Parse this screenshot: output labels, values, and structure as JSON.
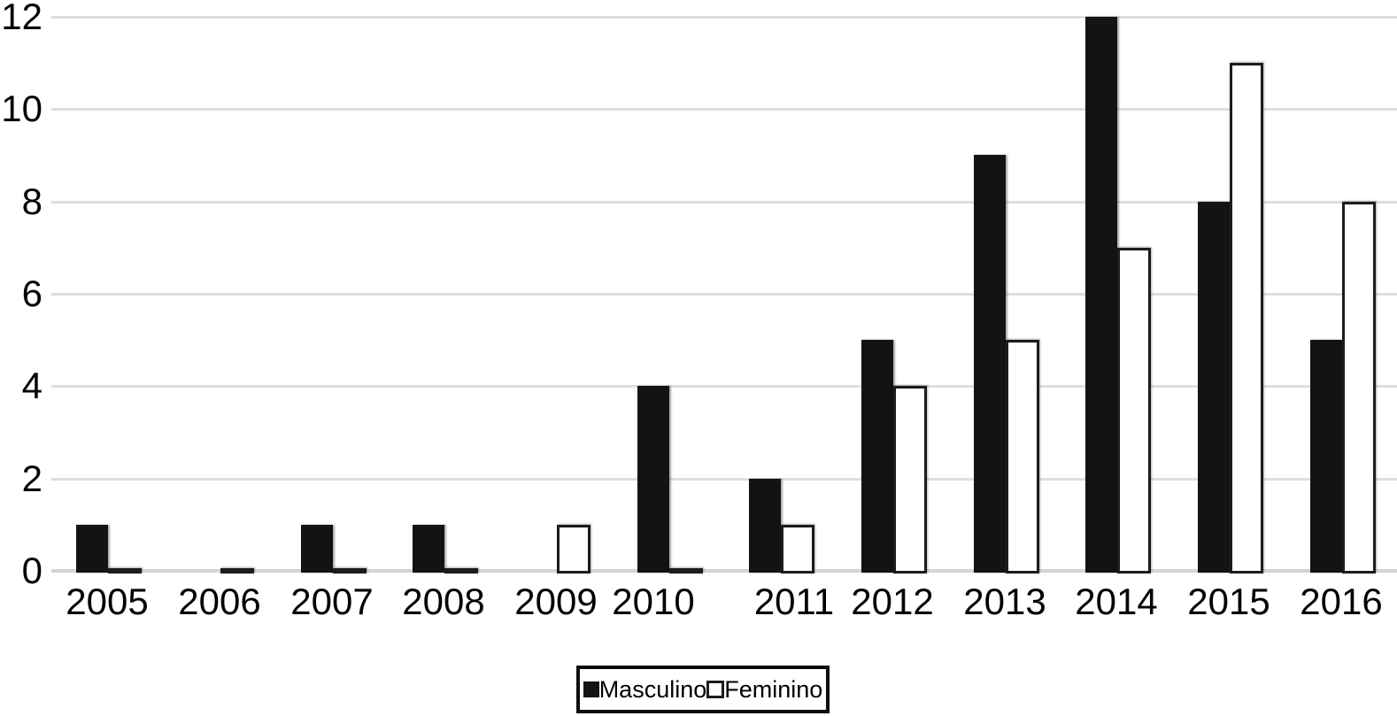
{
  "chart_data": {
    "type": "bar",
    "title": "",
    "categories": [
      "2005",
      "2006",
      "2007",
      "2008",
      "2009",
      "2010",
      "2011",
      "2012",
      "2013",
      "2014",
      "2015",
      "2016"
    ],
    "series": [
      {
        "name": "Masculino",
        "style": "solid",
        "values": [
          1,
          0,
          1,
          1,
          0,
          4,
          2,
          5,
          9,
          12,
          8,
          5
        ]
      },
      {
        "name": "Feminino",
        "style": "outlined",
        "values": [
          0,
          0,
          0,
          0,
          1,
          0,
          1,
          4,
          5,
          7,
          11,
          8
        ]
      }
    ],
    "xlabel": "",
    "ylabel": "",
    "ylim": [
      0,
      12
    ],
    "ytick_step": 2,
    "yticks": [
      "0",
      "2",
      "4",
      "6",
      "8",
      "10",
      "12"
    ],
    "grid": true,
    "legend_position": "bottom-center"
  },
  "colors": {
    "bar_fill": "#131313",
    "bar_outline": "#1c1c1c",
    "bar_white_fill": "#ffffff",
    "gridline": "#dedede",
    "baseline": "#d4d4d4",
    "text": "#000000",
    "background": "#ffffff"
  }
}
